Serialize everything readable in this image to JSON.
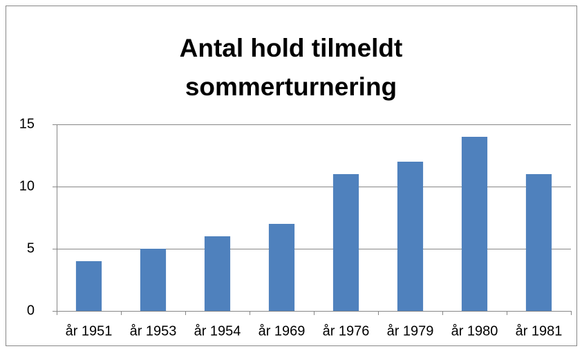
{
  "chart_data": {
    "type": "bar",
    "title": [
      "Antal hold tilmeldt",
      "sommerturnering"
    ],
    "categories": [
      "år 1951",
      "år 1953",
      "år 1954",
      "år 1969",
      "år 1976",
      "år 1979",
      "år 1980",
      "år 1981"
    ],
    "values": [
      4,
      5,
      6,
      7,
      11,
      12,
      14,
      11
    ],
    "color": "#4f81bd",
    "ylim": [
      0,
      15
    ],
    "yticks": [
      0,
      5,
      10,
      15
    ],
    "grid": true
  }
}
